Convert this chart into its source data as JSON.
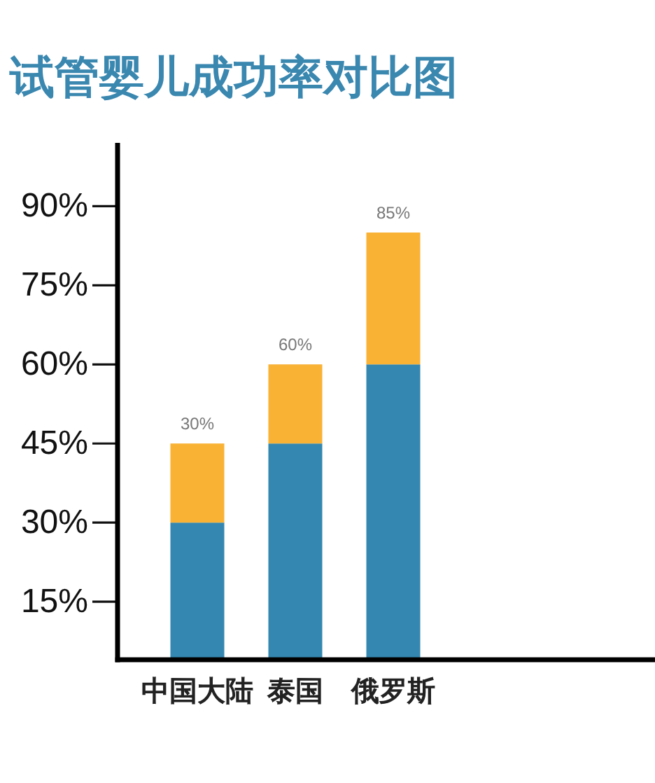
{
  "chart_data": {
    "type": "bar",
    "title": "试管婴儿成功率对比图",
    "categories": [
      "中国大陆",
      "泰国",
      "俄罗斯"
    ],
    "stacked": true,
    "series": [
      {
        "color": "#3487b0",
        "values": [
          30,
          45,
          60
        ]
      },
      {
        "color": "#f9b234",
        "values": [
          15,
          15,
          25
        ]
      }
    ],
    "ylim": [
      4,
      102
    ],
    "yticks": [
      {
        "value": 15,
        "label": "15%"
      },
      {
        "value": 30,
        "label": "30%"
      },
      {
        "value": 45,
        "label": "45%"
      },
      {
        "value": 60,
        "label": "60%"
      },
      {
        "value": 75,
        "label": "75%"
      },
      {
        "value": 90,
        "label": "90%"
      }
    ],
    "totals": [
      null,
      "60%",
      "85%"
    ],
    "annotations": [
      {
        "text": "30%",
        "x": "中国大陆",
        "y": 45
      }
    ]
  }
}
